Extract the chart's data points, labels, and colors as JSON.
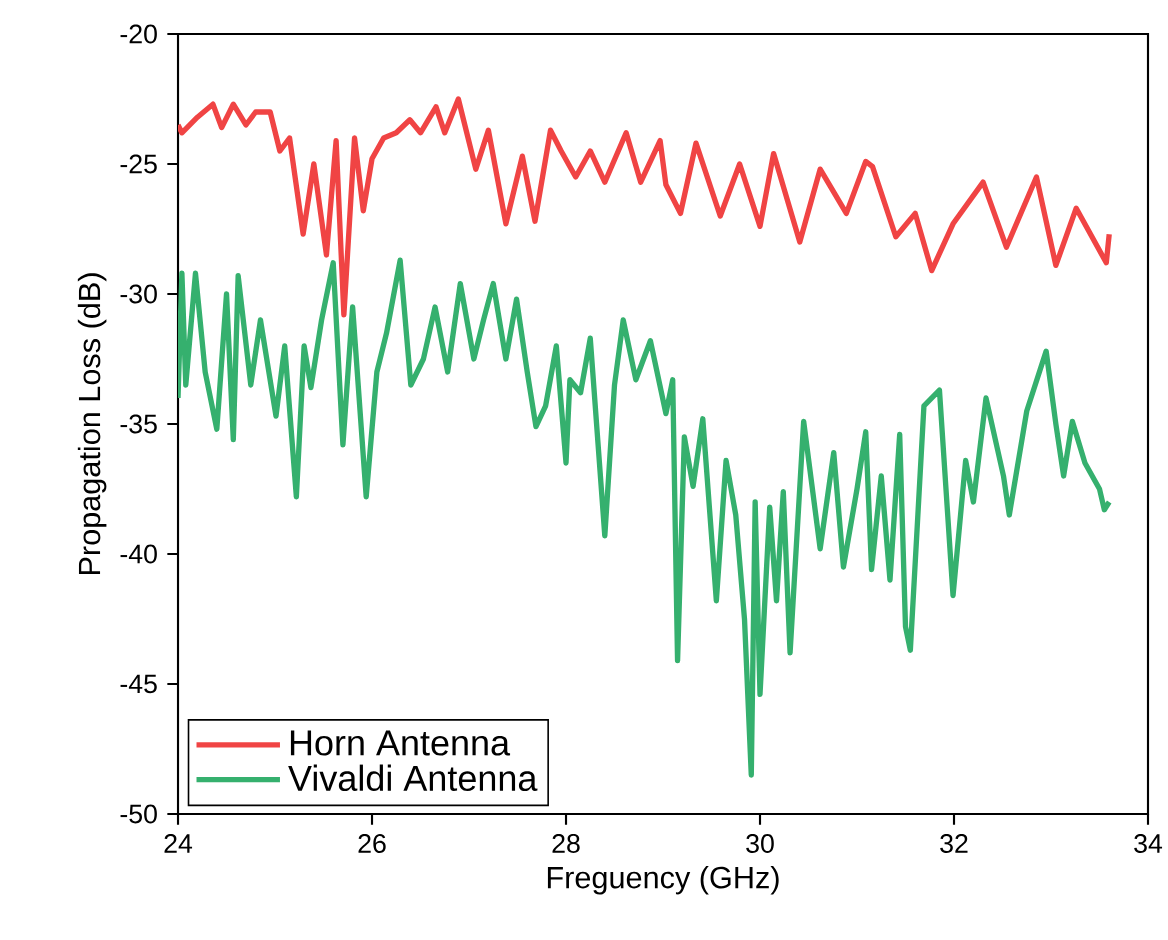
{
  "chart_data": {
    "type": "line",
    "xlabel": "Freguency (GHz)",
    "ylabel": "Propagation Loss (dB)",
    "xlim": [
      24,
      34
    ],
    "xticks": [
      24,
      26,
      28,
      30,
      32,
      34
    ],
    "ylim": [
      -50,
      -20
    ],
    "yticks": [
      -50,
      -45,
      -40,
      -35,
      -30,
      -25,
      -20
    ],
    "grid": false,
    "legend": "bottom left",
    "marker": "none",
    "line_style": "solid",
    "series": [
      {
        "name": "Horn Antenna",
        "color": "#f04444",
        "x": [
          24.0,
          24.04,
          24.2,
          24.36,
          24.45,
          24.57,
          24.7,
          24.8,
          24.95,
          25.05,
          25.15,
          25.29,
          25.4,
          25.53,
          25.63,
          25.71,
          25.82,
          25.91,
          26.0,
          26.12,
          26.25,
          26.39,
          26.5,
          26.66,
          26.75,
          26.89,
          27.07,
          27.2,
          27.38,
          27.55,
          27.68,
          27.84,
          27.95,
          28.1,
          28.25,
          28.4,
          28.62,
          28.77,
          28.97,
          29.03,
          29.18,
          29.34,
          29.59,
          29.79,
          30.0,
          30.14,
          30.41,
          30.62,
          30.89,
          31.09,
          31.16,
          31.4,
          31.6,
          31.77,
          31.99,
          32.3,
          32.54,
          32.85,
          33.05,
          33.26,
          33.57,
          33.6
        ],
        "values": [
          -23.5,
          -23.8,
          -23.2,
          -22.7,
          -23.6,
          -22.7,
          -23.5,
          -23.0,
          -23.0,
          -24.5,
          -24.0,
          -27.7,
          -25.0,
          -28.5,
          -24.1,
          -30.8,
          -24.0,
          -26.8,
          -24.8,
          -24.0,
          -23.8,
          -23.3,
          -23.8,
          -22.8,
          -23.8,
          -22.5,
          -25.2,
          -23.7,
          -27.3,
          -24.7,
          -27.2,
          -23.7,
          -24.5,
          -25.5,
          -24.5,
          -25.7,
          -23.8,
          -25.7,
          -24.1,
          -25.8,
          -26.9,
          -24.2,
          -27.0,
          -25.0,
          -27.4,
          -24.6,
          -28.0,
          -25.2,
          -26.9,
          -24.9,
          -25.1,
          -27.8,
          -26.9,
          -29.1,
          -27.3,
          -25.7,
          -28.2,
          -25.5,
          -28.9,
          -26.7,
          -28.8,
          -27.7
        ]
      },
      {
        "name": "Vivaldi Antenna",
        "color": "#35b06e",
        "x": [
          24.0,
          24.04,
          24.08,
          24.18,
          24.28,
          24.4,
          24.5,
          24.57,
          24.62,
          24.75,
          24.85,
          25.01,
          25.1,
          25.22,
          25.3,
          25.37,
          25.48,
          25.6,
          25.7,
          25.8,
          25.94,
          26.05,
          26.15,
          26.29,
          26.4,
          26.53,
          26.65,
          26.78,
          26.91,
          27.05,
          27.15,
          27.25,
          27.38,
          27.49,
          27.6,
          27.69,
          27.79,
          27.9,
          28.0,
          28.04,
          28.15,
          28.25,
          28.4,
          28.5,
          28.59,
          28.72,
          28.87,
          29.03,
          29.1,
          29.15,
          29.22,
          29.31,
          29.41,
          29.55,
          29.65,
          29.75,
          29.84,
          29.91,
          29.95,
          30.0,
          30.1,
          30.17,
          30.24,
          30.31,
          30.45,
          30.62,
          30.76,
          30.86,
          31.0,
          31.09,
          31.15,
          31.25,
          31.34,
          31.44,
          31.5,
          31.55,
          31.69,
          31.85,
          31.99,
          32.12,
          32.2,
          32.33,
          32.45,
          32.51,
          32.57,
          32.75,
          32.95,
          33.05,
          33.13,
          33.22,
          33.35,
          33.5,
          33.55,
          33.6
        ],
        "values": [
          -34.0,
          -29.2,
          -33.5,
          -29.2,
          -33.0,
          -35.2,
          -30.0,
          -35.6,
          -29.3,
          -33.5,
          -31.0,
          -34.7,
          -32.0,
          -37.8,
          -32.0,
          -33.6,
          -31.0,
          -28.8,
          -35.8,
          -30.5,
          -37.8,
          -33.0,
          -31.5,
          -28.7,
          -33.5,
          -32.5,
          -30.5,
          -33.0,
          -29.6,
          -32.5,
          -31.0,
          -29.6,
          -32.5,
          -30.2,
          -33.0,
          -35.1,
          -34.3,
          -32.0,
          -36.5,
          -33.3,
          -33.8,
          -31.7,
          -39.3,
          -33.5,
          -31.0,
          -33.3,
          -31.8,
          -34.6,
          -33.3,
          -44.1,
          -35.5,
          -37.4,
          -34.8,
          -41.8,
          -36.4,
          -38.5,
          -42.5,
          -48.5,
          -38.0,
          -45.4,
          -38.2,
          -41.8,
          -37.6,
          -43.8,
          -34.9,
          -39.8,
          -36.1,
          -40.5,
          -37.5,
          -35.3,
          -40.6,
          -37.0,
          -41.0,
          -35.4,
          -42.8,
          -43.7,
          -34.3,
          -33.7,
          -41.6,
          -36.4,
          -38.0,
          -34.0,
          -36.0,
          -37.0,
          -38.5,
          -34.5,
          -32.2,
          -35.0,
          -37.0,
          -34.9,
          -36.5,
          -37.5,
          -38.3,
          -38.0
        ]
      }
    ]
  }
}
